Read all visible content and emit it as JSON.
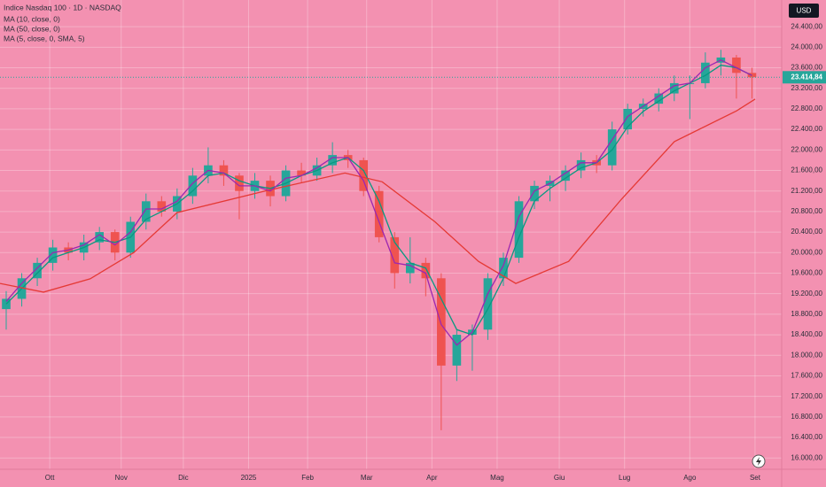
{
  "chart_data": {
    "type": "candlestick",
    "title": "Indice Nasdaq 100 · 1D · NASDAQ",
    "currency": "USD",
    "background": "#f391b1",
    "up_color": "#26a69a",
    "down_color": "#ef5350",
    "grid": true,
    "x": [
      2,
      7,
      12,
      17,
      22,
      27,
      32,
      37,
      42,
      47,
      52,
      57,
      62,
      67,
      72,
      77,
      82,
      87,
      92,
      97,
      102,
      107,
      112,
      117,
      122,
      127,
      132,
      137,
      142,
      147,
      152,
      157,
      162,
      167,
      172,
      177,
      182,
      187,
      192,
      197,
      202,
      207,
      212,
      217,
      222,
      227,
      232,
      237,
      242
    ],
    "open": [
      18900,
      19100,
      19500,
      19800,
      20100,
      20000,
      20200,
      20400,
      20000,
      20600,
      21000,
      20800,
      21100,
      21500,
      21700,
      21500,
      21200,
      21400,
      21100,
      21600,
      21500,
      21700,
      21900,
      21800,
      21200,
      20300,
      19600,
      19800,
      19500,
      17800,
      18400,
      18500,
      19500,
      19900,
      21000,
      21300,
      21400,
      21600,
      21800,
      21700,
      22400,
      22800,
      22900,
      23100,
      23300,
      23300,
      23700,
      23800,
      23500
    ],
    "high": [
      19250,
      19600,
      19900,
      20250,
      20200,
      20350,
      20500,
      20450,
      20700,
      21150,
      21100,
      21250,
      21650,
      22050,
      21800,
      21550,
      21550,
      21500,
      21700,
      21750,
      21850,
      22150,
      22000,
      21850,
      21300,
      20400,
      20300,
      19900,
      19600,
      18500,
      18600,
      19600,
      20000,
      21100,
      21400,
      21500,
      21700,
      21950,
      21900,
      22550,
      22900,
      23000,
      23200,
      23450,
      23450,
      23900,
      23950,
      23850,
      23600
    ],
    "low": [
      18500,
      18950,
      19350,
      19650,
      19850,
      19850,
      20050,
      19850,
      19900,
      20450,
      20700,
      20650,
      20950,
      21350,
      21300,
      20650,
      21050,
      20900,
      21000,
      21350,
      21400,
      21550,
      21650,
      21100,
      20200,
      19300,
      19400,
      19150,
      16540,
      17500,
      17700,
      18300,
      19350,
      19800,
      20850,
      21000,
      21200,
      21450,
      21550,
      21600,
      22300,
      22650,
      22750,
      22950,
      22600,
      23200,
      23450,
      23000,
      23000
    ],
    "close": [
      19100,
      19500,
      19800,
      20100,
      20000,
      20200,
      20400,
      20000,
      20600,
      21000,
      20800,
      21100,
      21500,
      21700,
      21500,
      21200,
      21400,
      21100,
      21600,
      21500,
      21700,
      21900,
      21800,
      21200,
      20300,
      19600,
      19800,
      19500,
      17800,
      18400,
      18500,
      19500,
      19900,
      21000,
      21300,
      21400,
      21600,
      21800,
      21700,
      22400,
      22800,
      22900,
      23100,
      23300,
      23300,
      23700,
      23800,
      23500,
      23414.84
    ],
    "last_price": {
      "value": 23414.84,
      "label": "23.414,84"
    },
    "series": [
      {
        "name": "MA (10, close, 0)",
        "color": "#089981",
        "values": [
          19000,
          19300,
          19600,
          19900,
          20000,
          20100,
          20250,
          20200,
          20300,
          20650,
          20800,
          20950,
          21200,
          21500,
          21550,
          21400,
          21300,
          21250,
          21350,
          21500,
          21600,
          21750,
          21850,
          21600,
          21000,
          20200,
          19800,
          19700,
          19100,
          18500,
          18400,
          18900,
          19500,
          20300,
          21000,
          21250,
          21450,
          21650,
          21750,
          22000,
          22450,
          22750,
          22950,
          23150,
          23300,
          23450,
          23650,
          23600,
          23450
        ]
      },
      {
        "name": "MA (50, close, 0)",
        "color": "#e53935",
        "x": [
          0,
          14,
          29,
          43,
          57,
          86,
          111,
          123,
          140,
          154,
          166,
          183,
          200,
          217,
          237,
          243
        ],
        "values": [
          19400,
          19230,
          19490,
          20000,
          20780,
          21210,
          21550,
          21380,
          20600,
          19830,
          19400,
          19830,
          21040,
          22160,
          22760,
          22990
        ]
      },
      {
        "name": "MA (5, close, 0, SMA, 5)",
        "color": "#9c27b0",
        "values": [
          19050,
          19400,
          19700,
          20000,
          20050,
          20150,
          20350,
          20150,
          20400,
          20850,
          20850,
          21000,
          21350,
          21600,
          21550,
          21300,
          21300,
          21200,
          21450,
          21500,
          21650,
          21850,
          21850,
          21400,
          20600,
          19800,
          19750,
          19600,
          18600,
          18200,
          18450,
          19200,
          19750,
          20700,
          21200,
          21350,
          21550,
          21750,
          21750,
          22200,
          22650,
          22850,
          23050,
          23250,
          23300,
          23600,
          23750,
          23600,
          23450
        ]
      }
    ],
    "xlim": [
      0,
      251
    ],
    "xticks": [
      {
        "value": 16,
        "label": "Ott"
      },
      {
        "value": 39,
        "label": "Nov"
      },
      {
        "value": 59,
        "label": "Dic"
      },
      {
        "value": 80,
        "label": "2025"
      },
      {
        "value": 99,
        "label": "Feb"
      },
      {
        "value": 118,
        "label": "Mar"
      },
      {
        "value": 139,
        "label": "Apr"
      },
      {
        "value": 160,
        "label": "Mag"
      },
      {
        "value": 180,
        "label": "Giu"
      },
      {
        "value": 201,
        "label": "Lug"
      },
      {
        "value": 222,
        "label": "Ago"
      },
      {
        "value": 243,
        "label": "Set"
      }
    ],
    "ylim": [
      15780,
      24920
    ],
    "yticks": [
      {
        "value": 16000,
        "label": "16.000,00"
      },
      {
        "value": 16400,
        "label": "16.400,00"
      },
      {
        "value": 16800,
        "label": "16.800,00"
      },
      {
        "value": 17200,
        "label": "17.200,00"
      },
      {
        "value": 17600,
        "label": "17.600,00"
      },
      {
        "value": 18000,
        "label": "18.000,00"
      },
      {
        "value": 18400,
        "label": "18.400,00"
      },
      {
        "value": 18800,
        "label": "18.800,00"
      },
      {
        "value": 19200,
        "label": "19.200,00"
      },
      {
        "value": 19600,
        "label": "19.600,00"
      },
      {
        "value": 20000,
        "label": "20.000,00"
      },
      {
        "value": 20400,
        "label": "20.400,00"
      },
      {
        "value": 20800,
        "label": "20.800,00"
      },
      {
        "value": 21200,
        "label": "21.200,00"
      },
      {
        "value": 21600,
        "label": "21.600,00"
      },
      {
        "value": 22000,
        "label": "22.000,00"
      },
      {
        "value": 22400,
        "label": "22.400,00"
      },
      {
        "value": 22800,
        "label": "22.800,00"
      },
      {
        "value": 23200,
        "label": "23.200,00"
      },
      {
        "value": 23600,
        "label": "23.600,00"
      },
      {
        "value": 24000,
        "label": "24.000,00"
      },
      {
        "value": 24400,
        "label": "24.400,00"
      }
    ]
  }
}
